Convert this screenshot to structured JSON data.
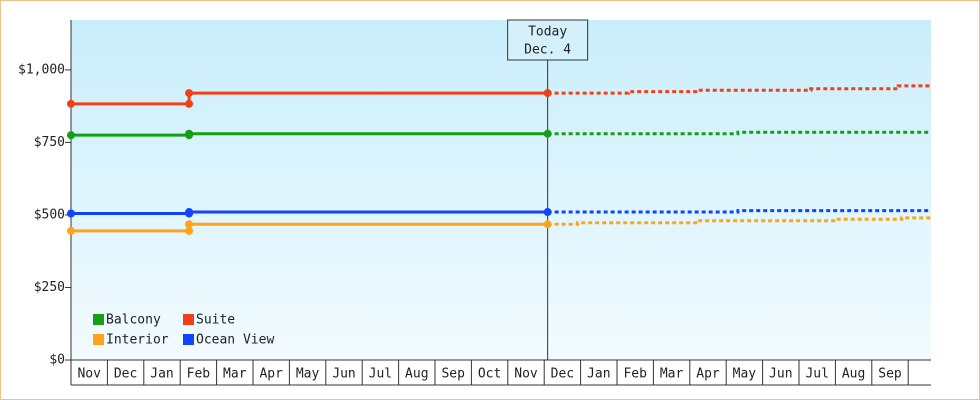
{
  "chart_data": {
    "type": "line",
    "ylim": [
      0,
      1172
    ],
    "yticks": [
      {
        "value": 0,
        "label": "$0"
      },
      {
        "value": 250,
        "label": "$250"
      },
      {
        "value": 500,
        "label": "$500"
      },
      {
        "value": 750,
        "label": "$750"
      },
      {
        "value": 1000,
        "label": "$1,000"
      }
    ],
    "xlim": [
      0,
      23.6
    ],
    "categories": [
      "Nov",
      "Dec",
      "Jan",
      "Feb",
      "Mar",
      "Apr",
      "May",
      "Jun",
      "Jul",
      "Aug",
      "Sep",
      "Oct",
      "Nov",
      "Dec",
      "Jan",
      "Feb",
      "Mar",
      "Apr",
      "May",
      "Jun",
      "Jul",
      "Aug",
      "Sep"
    ],
    "annotation": {
      "lines": [
        "Today",
        "Dec. 4"
      ],
      "x": 13.08
    },
    "legend": "lower left",
    "series": [
      {
        "name": "Balcony",
        "color": "#14a014",
        "x": [
          0,
          3.24,
          3.24,
          13.08
        ],
        "values": [
          775,
          775,
          780,
          780
        ],
        "forecast_x": [
          13.08,
          18.3,
          18.3,
          23.6
        ],
        "forecast_values": [
          780,
          780,
          785,
          785
        ]
      },
      {
        "name": "Suite",
        "color": "#f0401a",
        "x": [
          0,
          3.24,
          3.24,
          13.08
        ],
        "values": [
          883,
          883,
          920,
          920
        ],
        "forecast_x": [
          13.08,
          15.3,
          15.3,
          17.2,
          17.2,
          20.3,
          20.3,
          22.7,
          22.7,
          23.6
        ],
        "forecast_values": [
          920,
          920,
          925,
          925,
          930,
          930,
          935,
          935,
          945,
          945
        ]
      },
      {
        "name": "Interior",
        "color": "#ffa31a",
        "x": [
          0,
          3.24,
          3.24,
          13.08
        ],
        "values": [
          445,
          445,
          468,
          468
        ],
        "forecast_x": [
          13.08,
          13.9,
          13.9,
          17.2,
          17.2,
          21.0,
          21.0,
          22.8,
          22.8,
          23.6
        ],
        "forecast_values": [
          468,
          468,
          473,
          473,
          480,
          480,
          485,
          485,
          490,
          490
        ]
      },
      {
        "name": "Ocean View",
        "color": "#1044ff",
        "x": [
          0,
          3.24,
          3.24,
          13.08
        ],
        "values": [
          505,
          505,
          510,
          510
        ],
        "forecast_x": [
          13.08,
          18.3,
          18.3,
          23.6
        ],
        "forecast_values": [
          510,
          510,
          515,
          515
        ]
      }
    ]
  }
}
